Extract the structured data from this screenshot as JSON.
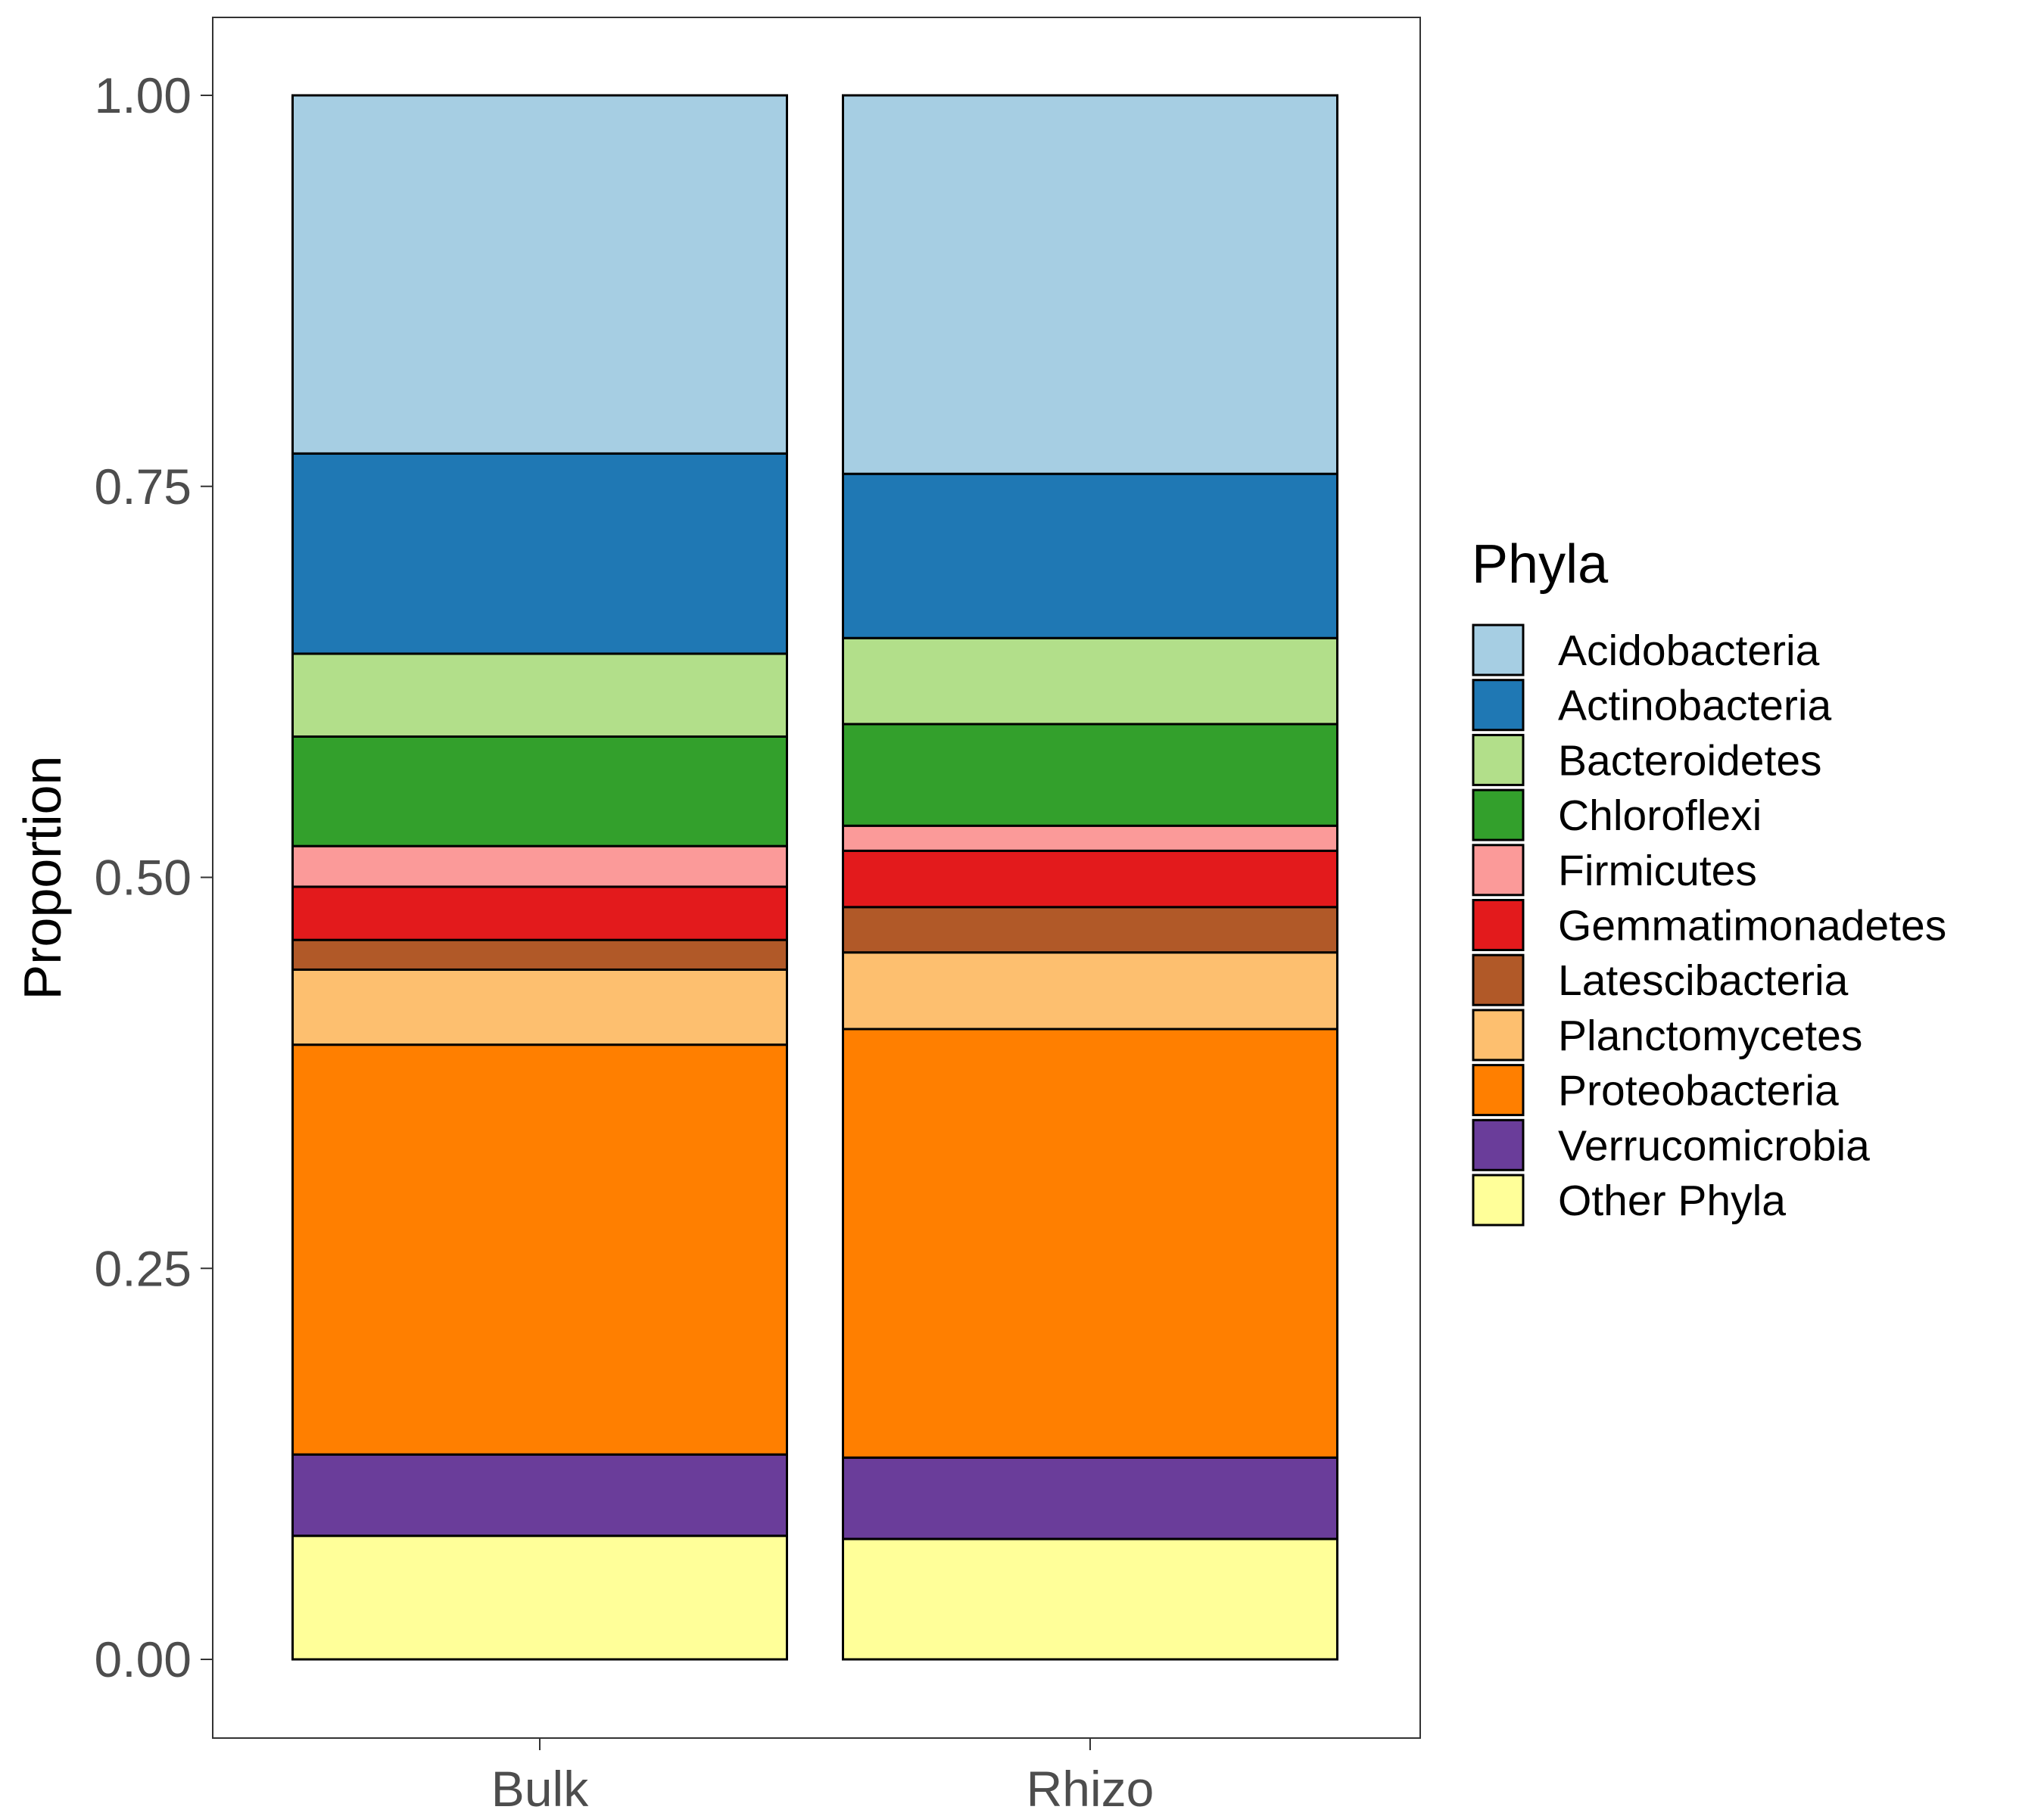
{
  "chart_data": {
    "type": "bar",
    "stacked": true,
    "categories": [
      "Bulk",
      "Rhizo"
    ],
    "ylabel": "Proportion",
    "xlabel": "",
    "ylim": [
      0,
      1
    ],
    "yticks": [
      "0.00",
      "0.25",
      "0.50",
      "0.75",
      "1.00"
    ],
    "legend_title": "Phyla",
    "legend_position": "right",
    "grid": false,
    "series": [
      {
        "name": "Acidobacteria",
        "color": "#A6CEE3",
        "values": [
          0.229,
          0.242
        ]
      },
      {
        "name": "Actinobacteria",
        "color": "#1F78B4",
        "values": [
          0.128,
          0.105
        ]
      },
      {
        "name": "Bacteroidetes",
        "color": "#B2DF8A",
        "values": [
          0.053,
          0.055
        ]
      },
      {
        "name": "Chloroflexi",
        "color": "#33A02C",
        "values": [
          0.07,
          0.065
        ]
      },
      {
        "name": "Firmicutes",
        "color": "#FB9A99",
        "values": [
          0.026,
          0.016
        ]
      },
      {
        "name": "Gemmatimonadetes",
        "color": "#E31A1C",
        "values": [
          0.034,
          0.036
        ]
      },
      {
        "name": "Latescibacteria",
        "color": "#B15928",
        "values": [
          0.019,
          0.029
        ]
      },
      {
        "name": "Planctomycetes",
        "color": "#FDBF6F",
        "values": [
          0.048,
          0.049
        ]
      },
      {
        "name": "Proteobacteria",
        "color": "#FF7F00",
        "values": [
          0.262,
          0.274
        ]
      },
      {
        "name": "Verrucomicrobia",
        "color": "#6A3D9A",
        "values": [
          0.052,
          0.052
        ]
      },
      {
        "name": "Other Phyla",
        "color": "#FFFF99",
        "values": [
          0.079,
          0.077
        ]
      }
    ]
  }
}
